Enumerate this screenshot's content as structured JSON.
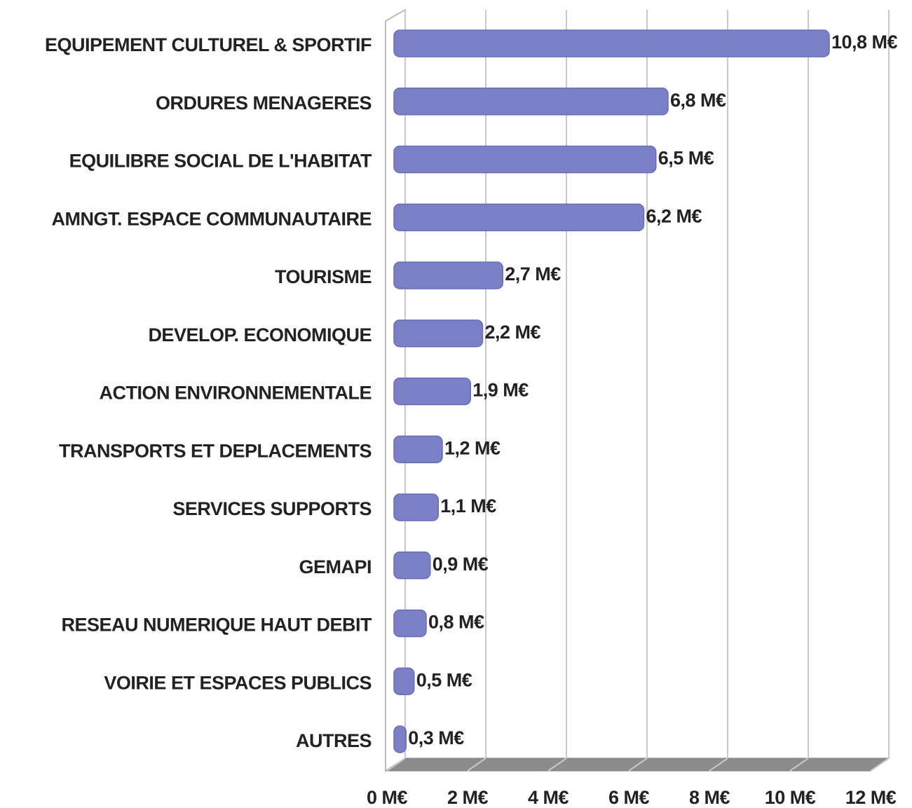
{
  "chart_data": {
    "type": "bar",
    "orientation": "horizontal",
    "categories": [
      "EQUIPEMENT CULTUREL & SPORTIF",
      "ORDURES MENAGERES",
      "EQUILIBRE SOCIAL DE L'HABITAT",
      "AMNGT. ESPACE COMMUNAUTAIRE",
      "TOURISME",
      "DEVELOP. ECONOMIQUE",
      "ACTION ENVIRONNEMENTALE",
      "TRANSPORTS ET DEPLACEMENTS",
      "SERVICES SUPPORTS",
      "GEMAPI",
      "RESEAU NUMERIQUE HAUT DEBIT",
      "VOIRIE ET ESPACES PUBLICS",
      "AUTRES"
    ],
    "values": [
      10.8,
      6.8,
      6.5,
      6.2,
      2.7,
      2.2,
      1.9,
      1.2,
      1.1,
      0.9,
      0.8,
      0.5,
      0.3
    ],
    "value_labels": [
      "10,8 M€",
      "6,8 M€",
      "6,5 M€",
      "6,2 M€",
      "2,7 M€",
      "2,2 M€",
      "1,9 M€",
      "1,2 M€",
      "1,1 M€",
      "0,9 M€",
      "0,8 M€",
      "0,5 M€",
      "0,3 M€"
    ],
    "color": "#7b7fc6",
    "xlim": [
      0,
      12
    ],
    "xticks": [
      {
        "value": 0,
        "label": "0 M€"
      },
      {
        "value": 2,
        "label": "2 M€"
      },
      {
        "value": 4,
        "label": "4 M€"
      },
      {
        "value": 6,
        "label": "6 M€"
      },
      {
        "value": 8,
        "label": "8 M€"
      },
      {
        "value": 10,
        "label": "10 M€"
      },
      {
        "value": 12,
        "label": "12 M€"
      }
    ],
    "grid": true
  }
}
